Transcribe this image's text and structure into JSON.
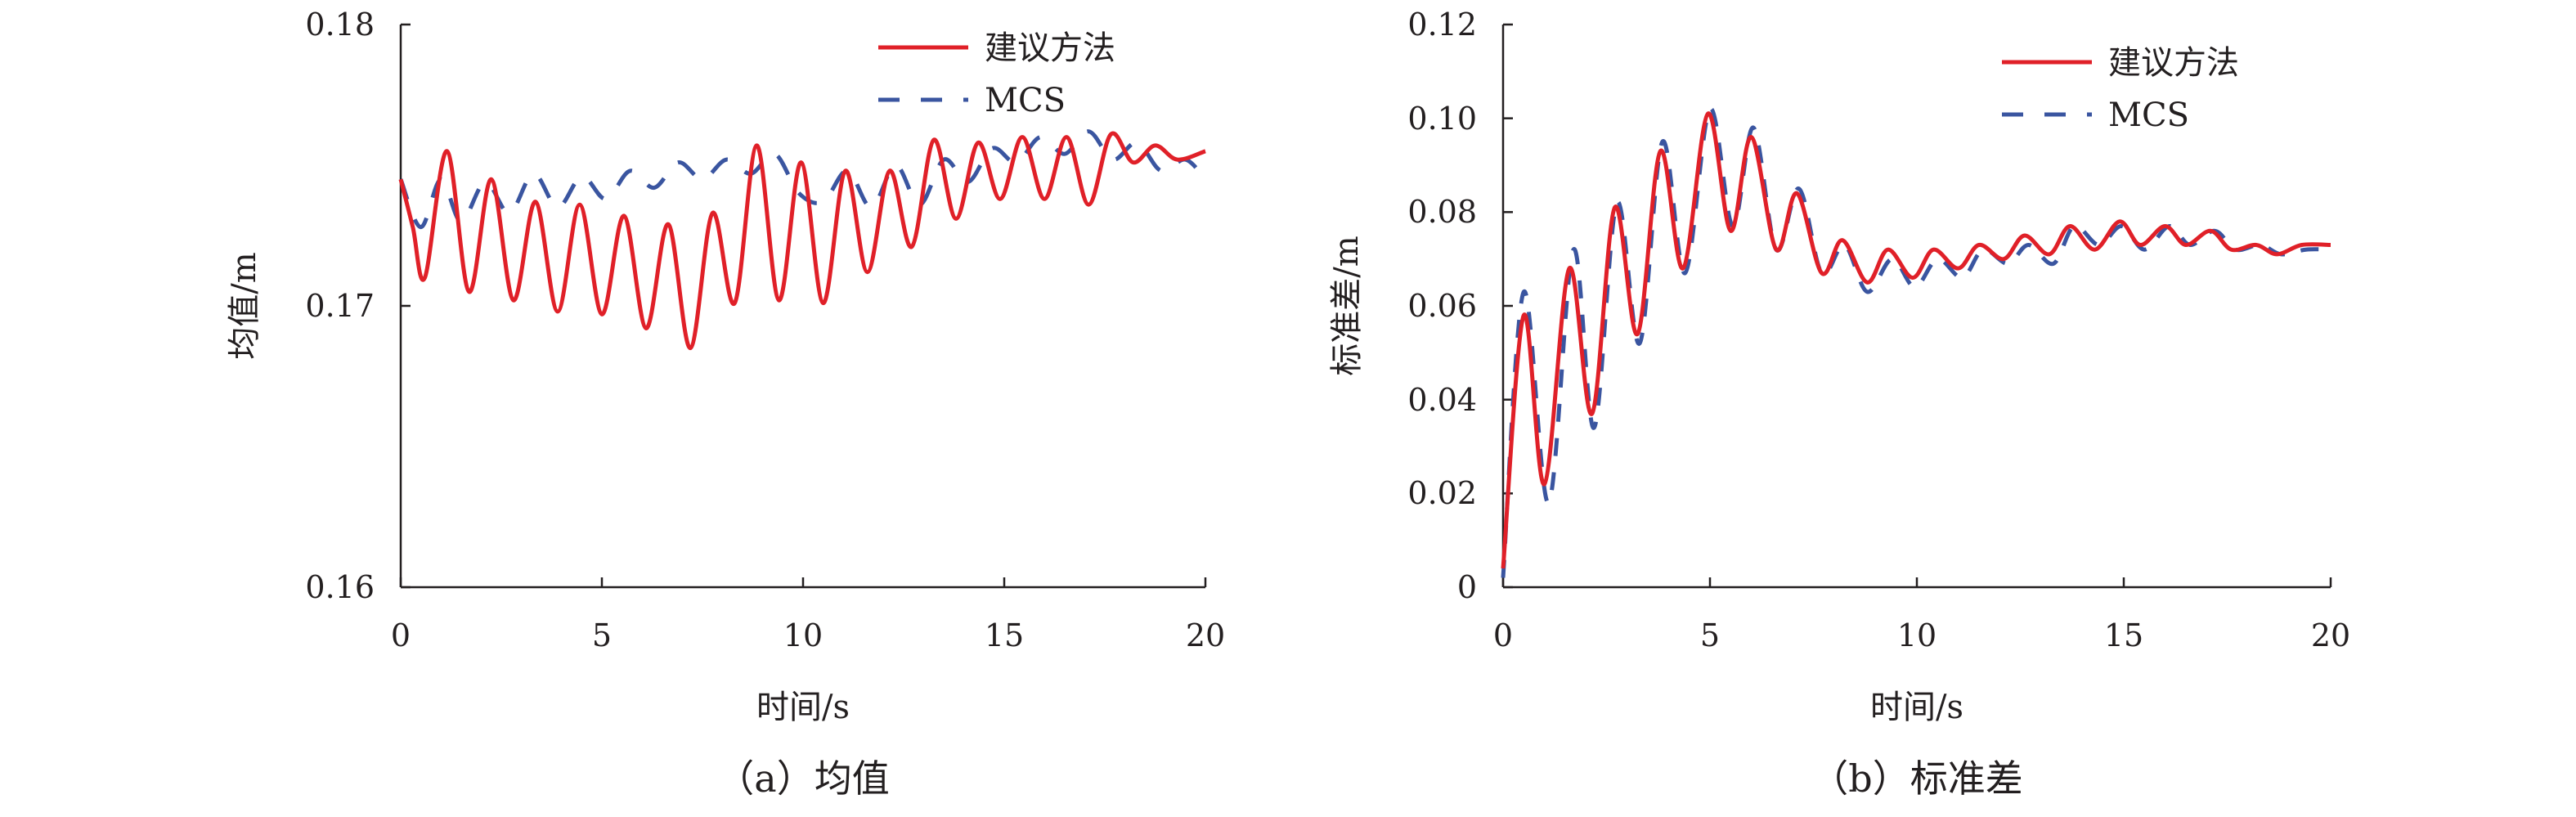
{
  "colors": {
    "proposed": "#e02028",
    "mcs": "#3a55a0",
    "axis": "#231f20"
  },
  "charts": [
    {
      "caption": "（a）均值",
      "xlabel": "时间/s",
      "ylabel": "均值/m",
      "xticks": [
        "0",
        "5",
        "10",
        "15",
        "20"
      ],
      "yticks": [
        "0.16",
        "0.17",
        "0.18"
      ],
      "legend": [
        "建议方法",
        "MCS"
      ]
    },
    {
      "caption": "（b）标准差",
      "xlabel": "时间/s",
      "ylabel": "标准差/m",
      "xticks": [
        "0",
        "5",
        "10",
        "15",
        "20"
      ],
      "yticks": [
        "0",
        "0.02",
        "0.04",
        "0.06",
        "0.08",
        "0.10",
        "0.12"
      ],
      "legend": [
        "建议方法",
        "MCS"
      ]
    }
  ],
  "chart_data": [
    {
      "type": "line",
      "xlabel": "时间/s",
      "ylabel": "均值/m",
      "xlim": [
        0,
        20
      ],
      "ylim": [
        0.16,
        0.18
      ],
      "legend_position": "top-right",
      "series": [
        {
          "name": "建议方法",
          "color": "#e02028",
          "style": "solid",
          "x": [
            0,
            0.3,
            0.6,
            1.15,
            1.7,
            2.25,
            2.8,
            3.35,
            3.9,
            4.45,
            5.0,
            5.55,
            6.1,
            6.65,
            7.2,
            7.75,
            8.3,
            8.85,
            9.4,
            9.95,
            10.5,
            11.05,
            11.6,
            12.15,
            12.7,
            13.25,
            13.8,
            14.35,
            14.9,
            15.45,
            16.0,
            16.55,
            17.1,
            17.65,
            18.2,
            18.75,
            19.3,
            20.0
          ],
          "y": [
            0.1745,
            0.1728,
            0.171,
            0.1755,
            0.1705,
            0.1745,
            0.1702,
            0.1737,
            0.1698,
            0.1736,
            0.1697,
            0.1732,
            0.1692,
            0.1729,
            0.1685,
            0.1733,
            0.1701,
            0.1757,
            0.1702,
            0.1751,
            0.1701,
            0.1748,
            0.1712,
            0.1748,
            0.1721,
            0.1759,
            0.1731,
            0.1758,
            0.1738,
            0.176,
            0.1738,
            0.176,
            0.1736,
            0.1761,
            0.1751,
            0.1757,
            0.1752,
            0.1755
          ]
        },
        {
          "name": "MCS",
          "color": "#3a55a0",
          "style": "dashed",
          "x": [
            0,
            0.5,
            1.0,
            1.5,
            2.1,
            2.7,
            3.3,
            3.9,
            4.5,
            5.1,
            5.7,
            6.3,
            6.9,
            7.5,
            8.1,
            8.7,
            9.3,
            9.9,
            10.5,
            11.1,
            11.7,
            12.3,
            12.9,
            13.5,
            14.1,
            14.7,
            15.3,
            15.9,
            16.5,
            17.1,
            17.7,
            18.3,
            18.9,
            19.5,
            20.0
          ],
          "y": [
            0.1745,
            0.1728,
            0.1745,
            0.173,
            0.1744,
            0.1733,
            0.1747,
            0.1735,
            0.1746,
            0.1738,
            0.1748,
            0.1742,
            0.1751,
            0.1745,
            0.1752,
            0.1747,
            0.1754,
            0.174,
            0.1737,
            0.1748,
            0.1735,
            0.175,
            0.1736,
            0.1752,
            0.1744,
            0.1756,
            0.1751,
            0.176,
            0.1754,
            0.1762,
            0.1752,
            0.1758,
            0.1748,
            0.1752,
            0.1745
          ]
        }
      ]
    },
    {
      "type": "line",
      "xlabel": "时间/s",
      "ylabel": "标准差/m",
      "xlim": [
        0,
        20
      ],
      "ylim": [
        0,
        0.12
      ],
      "legend_position": "top-right",
      "series": [
        {
          "name": "建议方法",
          "color": "#e02028",
          "style": "solid",
          "x": [
            0,
            0.5,
            1.0,
            1.6,
            2.15,
            2.7,
            3.25,
            3.8,
            4.35,
            4.95,
            5.5,
            6.0,
            6.6,
            7.1,
            7.7,
            8.2,
            8.8,
            9.3,
            9.9,
            10.4,
            11.0,
            11.5,
            12.1,
            12.6,
            13.2,
            13.7,
            14.3,
            14.9,
            15.4,
            16.0,
            16.5,
            17.1,
            17.6,
            18.2,
            18.7,
            19.3,
            20.0
          ],
          "y": [
            0.004,
            0.058,
            0.022,
            0.068,
            0.037,
            0.081,
            0.054,
            0.093,
            0.068,
            0.101,
            0.076,
            0.096,
            0.072,
            0.084,
            0.067,
            0.074,
            0.065,
            0.072,
            0.066,
            0.072,
            0.068,
            0.073,
            0.07,
            0.075,
            0.071,
            0.077,
            0.072,
            0.078,
            0.073,
            0.077,
            0.073,
            0.076,
            0.072,
            0.073,
            0.071,
            0.073,
            0.073
          ]
        },
        {
          "name": "MCS",
          "color": "#3a55a0",
          "style": "dashed",
          "x": [
            0,
            0.5,
            1.1,
            1.7,
            2.2,
            2.75,
            3.3,
            3.85,
            4.4,
            5.0,
            5.55,
            6.05,
            6.6,
            7.15,
            7.7,
            8.25,
            8.8,
            9.4,
            9.95,
            10.5,
            11.1,
            11.6,
            12.2,
            12.7,
            13.3,
            13.8,
            14.4,
            14.95,
            15.5,
            16.1,
            16.6,
            17.2,
            17.7,
            18.3,
            18.8,
            19.4,
            20.0
          ],
          "y": [
            0.002,
            0.063,
            0.018,
            0.072,
            0.034,
            0.082,
            0.052,
            0.095,
            0.067,
            0.102,
            0.077,
            0.098,
            0.072,
            0.085,
            0.067,
            0.073,
            0.063,
            0.07,
            0.064,
            0.07,
            0.066,
            0.072,
            0.069,
            0.073,
            0.069,
            0.077,
            0.073,
            0.077,
            0.072,
            0.077,
            0.073,
            0.076,
            0.072,
            0.073,
            0.071,
            0.072,
            0.072
          ]
        }
      ]
    }
  ]
}
